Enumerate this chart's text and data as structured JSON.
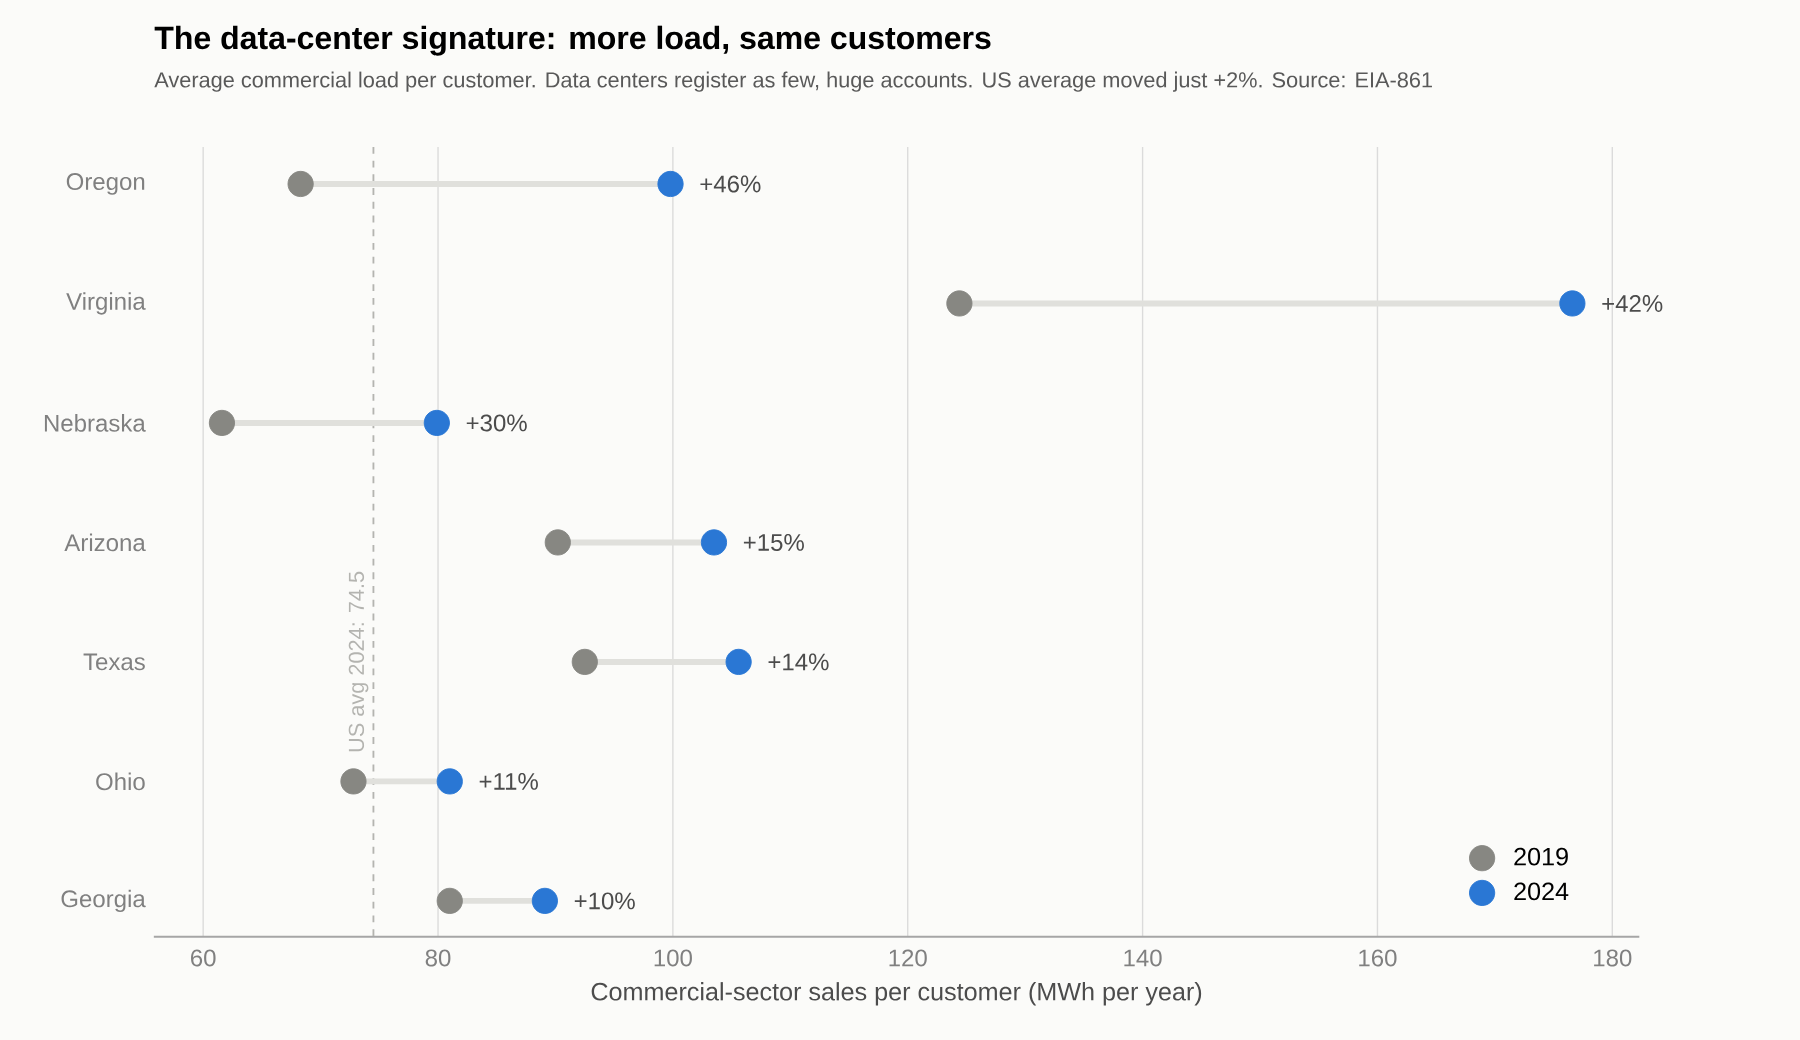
{
  "chart_data": {
    "type": "scatter",
    "orientation": "horizontal",
    "title": "The data-center signature: more load, same customers",
    "subtitle": "Average commercial load per customer. Data centers register as few, huge accounts. US average moved just +2%. Source: EIA-861",
    "xlabel": "Commercial-sector sales per customer (MWh per year)",
    "categories": [
      "Oregon",
      "Virginia",
      "Nebraska",
      "Arizona",
      "Texas",
      "Ohio",
      "Georgia"
    ],
    "series": [
      {
        "name": "2019",
        "color": "#878782",
        "values": [
          68.3,
          124.4,
          61.6,
          90.2,
          92.5,
          72.8,
          81.0
        ]
      },
      {
        "name": "2024",
        "color": "#2a77d4",
        "values": [
          99.8,
          176.6,
          79.9,
          103.5,
          105.6,
          81.0,
          89.1
        ]
      }
    ],
    "annotations": [
      {
        "text": "+46%",
        "x": 99.8,
        "y": "Oregon"
      },
      {
        "text": "+42%",
        "x": 176.6,
        "y": "Virginia"
      },
      {
        "text": "+30%",
        "x": 79.9,
        "y": "Nebraska"
      },
      {
        "text": "+15%",
        "x": 103.5,
        "y": "Arizona"
      },
      {
        "text": "+14%",
        "x": 105.6,
        "y": "Texas"
      },
      {
        "text": "+11%",
        "x": 81.0,
        "y": "Ohio"
      },
      {
        "text": "+10%",
        "x": 89.1,
        "y": "Georgia"
      }
    ],
    "xlim": [
      55.8,
      182.3
    ],
    "xticks": [
      60,
      80,
      100,
      120,
      140,
      160,
      180
    ],
    "ref_lines": [
      {
        "axis": "x",
        "value": 74.5,
        "label": "US avg 2024: 74.5",
        "color": "#b4b4b0",
        "line_style": "dashed"
      }
    ],
    "grid": "x",
    "legend": "bottom right",
    "marker": "circle"
  }
}
